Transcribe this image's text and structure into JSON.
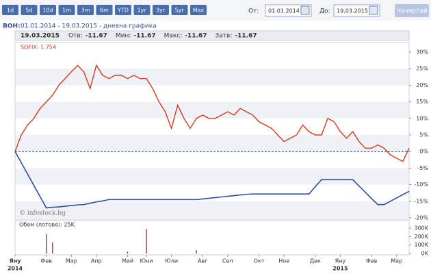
{
  "toolbar": {
    "buttons": [
      "1d",
      "5d",
      "10d",
      "1m",
      "3m",
      "6m",
      "YTD",
      "1уг",
      "3уг",
      "5уг",
      "Max"
    ],
    "from_label": "От:",
    "from_value": "01.01.2014",
    "to_label": "До:",
    "to_value": "19.03.2015",
    "submit": "Начертай"
  },
  "header": {
    "symbol": "ВОН:",
    "range": "01.01.2014 - 19.03.2015 - дневна графика"
  },
  "info": {
    "date": "19.03.2015",
    "fields": [
      {
        "label": "Отв:",
        "value": -11.67
      },
      {
        "label": "Мин:",
        "value": -11.67
      },
      {
        "label": "Макс:",
        "value": -11.67
      },
      {
        "label": "Затв:",
        "value": -11.67
      }
    ]
  },
  "watermark": "© infostock.bg",
  "chart_data": [
    {
      "type": "line",
      "categories": [
        "Яну",
        null,
        null,
        null,
        null,
        "Фев",
        null,
        null,
        null,
        "Мар",
        null,
        null,
        null,
        "Апр",
        null,
        null,
        null,
        null,
        "Май",
        null,
        null,
        "Юни",
        null,
        null,
        null,
        "Юли",
        null,
        null,
        null,
        null,
        "Авг",
        null,
        null,
        null,
        "Сеп",
        null,
        null,
        null,
        null,
        "Окт",
        null,
        null,
        null,
        "Ное",
        null,
        null,
        null,
        null,
        "Дек",
        null,
        null,
        null,
        "Яну",
        null,
        null,
        null,
        null,
        "Фев",
        null,
        null,
        null,
        "Мар",
        null,
        null
      ],
      "year_labels": [
        {
          "value": 0,
          "label": "2014"
        },
        {
          "value": 52,
          "label": "2015"
        }
      ],
      "series": [
        {
          "name": "SOFIX: 1.754",
          "color": "#d9381e",
          "values": [
            0,
            5,
            8,
            10,
            13,
            15,
            17,
            20,
            22,
            24,
            26,
            24,
            19,
            26,
            23,
            22,
            23,
            23,
            22,
            23,
            22,
            22,
            19,
            15,
            12,
            7,
            14,
            10,
            7,
            10,
            11,
            10,
            10,
            11,
            12,
            11,
            13,
            12,
            11,
            9,
            8,
            7,
            5,
            3,
            4,
            5,
            8,
            6,
            5,
            5,
            10,
            9,
            6,
            4,
            6,
            3,
            1,
            1,
            2,
            1,
            -1,
            -2,
            -3,
            1
          ]
        },
        {
          "color": "#2e4d9a",
          "values": [
            0,
            -3.4,
            -6.8,
            -10.2,
            -13.6,
            -17,
            -16.8,
            -16.7,
            -16.5,
            -16.3,
            -16.1,
            -16,
            -15.6,
            -15.2,
            -14.9,
            -14.5,
            -14.5,
            -14.5,
            -14.5,
            -14.5,
            -14.5,
            -14.5,
            -14.5,
            -14.5,
            -14.5,
            -14.5,
            -14.5,
            -14.5,
            -14.5,
            -14.5,
            -14.3,
            -14.1,
            -13.9,
            -13.7,
            -13.5,
            -13.3,
            -13.1,
            -12.9,
            -12.8,
            -12.8,
            -12.8,
            -12.8,
            -12.8,
            -12.8,
            -12.8,
            -12.8,
            -12.8,
            -12.8,
            -10.6,
            -8.5,
            -8.5,
            -8.5,
            -8.5,
            -8.5,
            -8.5,
            -10.4,
            -12.3,
            -14.2,
            -16,
            -16,
            -15,
            -14,
            -13,
            -12
          ]
        }
      ],
      "ylim": [
        -20,
        30
      ],
      "yticks": [
        {
          "value": 30,
          "label": "30%"
        },
        {
          "value": 25,
          "label": "25%"
        },
        {
          "value": 20,
          "label": "20%"
        },
        {
          "value": 15,
          "label": "15%"
        },
        {
          "value": 10,
          "label": "10%"
        },
        {
          "value": 5,
          "label": "5%"
        },
        {
          "value": 0,
          "label": "0%"
        },
        {
          "value": -5,
          "label": "-5%"
        },
        {
          "value": -10,
          "label": "-10%"
        },
        {
          "value": -15,
          "label": "-15%"
        },
        {
          "value": -20,
          "label": "-20%"
        }
      ],
      "grid": true
    },
    {
      "type": "bar",
      "title": "Обем (лотове): 25K",
      "color": "#8b1a1a",
      "values": [
        0,
        0,
        0,
        0,
        0,
        230000,
        130000,
        0,
        0,
        0,
        0,
        0,
        0,
        0,
        0,
        0,
        0,
        0,
        20000,
        0,
        0,
        290000,
        0,
        0,
        0,
        0,
        0,
        0,
        0,
        40000,
        0,
        0,
        0,
        0,
        0,
        0,
        0,
        0,
        0,
        0,
        0,
        0,
        0,
        0,
        0,
        0,
        0,
        0,
        0,
        0,
        0,
        0,
        0,
        0,
        0,
        0,
        0,
        0,
        0,
        0,
        0,
        0,
        0,
        0
      ],
      "ylim": [
        0,
        300000
      ],
      "yticks": [
        {
          "value": 300000,
          "label": "300K"
        },
        {
          "value": 200000,
          "label": "200K"
        },
        {
          "value": 100000,
          "label": "100K"
        },
        {
          "value": 0,
          "label": "0K"
        }
      ]
    }
  ]
}
